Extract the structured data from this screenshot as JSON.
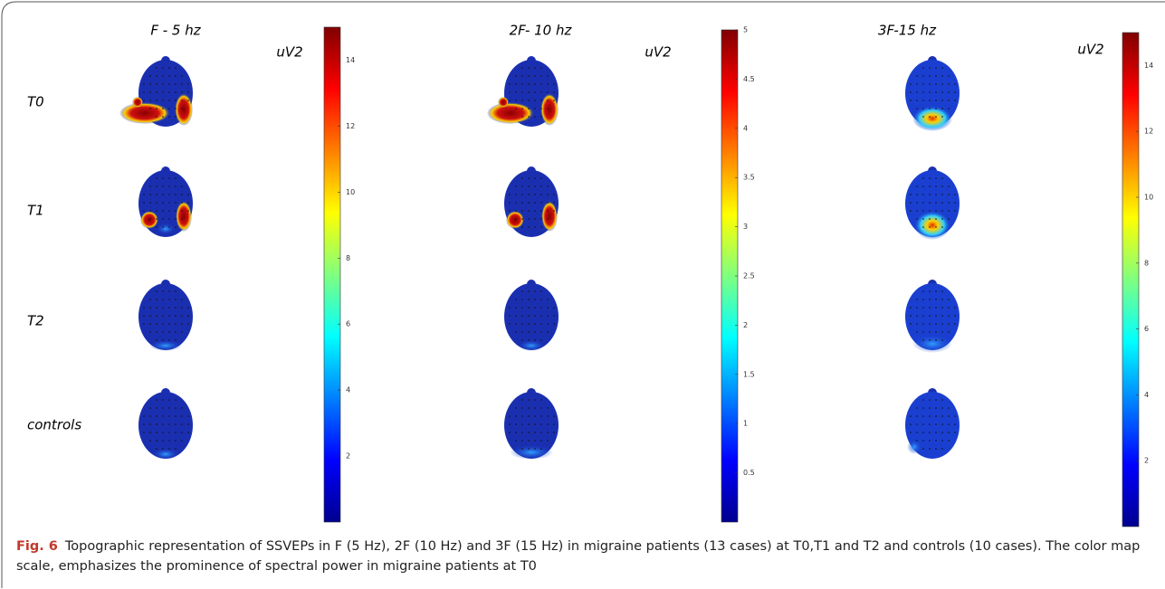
{
  "figure": {
    "columns": [
      {
        "title": "F - 5 hz",
        "unit": "uV2",
        "range": [
          0,
          15
        ],
        "ticks": [
          2,
          4,
          6,
          8,
          10,
          12,
          14
        ]
      },
      {
        "title": "2F- 10 hz",
        "unit": "uV2",
        "range": [
          0,
          5
        ],
        "ticks": [
          0.5,
          1,
          1.5,
          2,
          2.5,
          3,
          3.5,
          4,
          4.5,
          5
        ]
      },
      {
        "title": "3F-15 hz",
        "unit": "uV2",
        "range": [
          0,
          15
        ],
        "ticks": [
          2,
          4,
          6,
          8,
          10,
          12,
          14
        ]
      }
    ],
    "rows": [
      "T0",
      "T1",
      "T2",
      "controls"
    ],
    "caption": {
      "label": "Fig. 6",
      "text": "Topographic representation of SSVEPs in F (5 Hz), 2F (10 Hz) and 3F (15 Hz) in migraine patients (13 cases) at T0,T1 and T2 and controls (10 cases). The color map scale, emphasizes the prominence of spectral power in migraine patients at T0"
    }
  }
}
